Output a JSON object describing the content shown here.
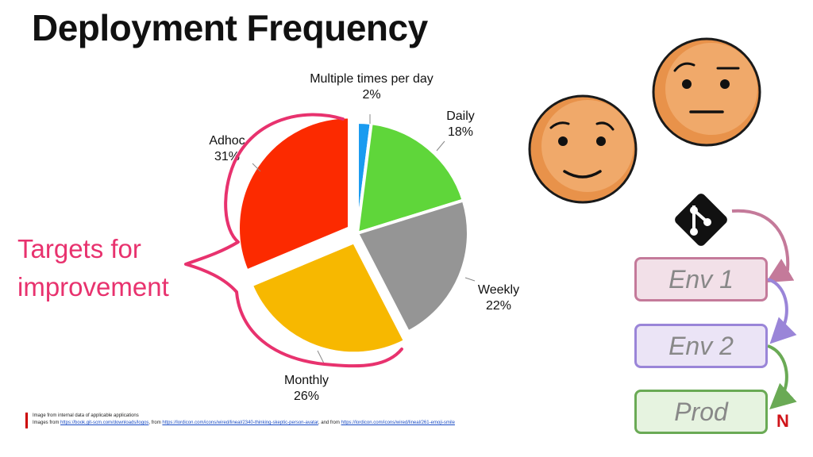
{
  "title": "Deployment Frequency",
  "callout": {
    "text": "Targets for\nimprovement",
    "color": "#e8326e"
  },
  "chart_data": {
    "type": "pie",
    "title": "",
    "slices": [
      {
        "label": "Multiple times per day",
        "value": 2,
        "value_label": "2%",
        "color": "#1a9bf0"
      },
      {
        "label": "Daily",
        "value": 18,
        "value_label": "18%",
        "color": "#5fd63a"
      },
      {
        "label": "Weekly",
        "value": 22,
        "value_label": "22%",
        "color": "#959595"
      },
      {
        "label": "Monthly",
        "value": 26,
        "value_label": "26%",
        "color": "#f7b800",
        "exploded": true
      },
      {
        "label": "Adhoc",
        "value": 31,
        "value_label": "31%",
        "color": "#fc2a00",
        "exploded": true
      }
    ],
    "start_angle_deg": 0,
    "direction": "clockwise",
    "legend": "none"
  },
  "footer": {
    "line1": "Image from internal data of applicable applications",
    "line2_prefix": "Images from ",
    "link1": "https://book.git-scm.com/downloads/logos",
    "sep1": ", from ",
    "link2": "https://lordicon.com/icons/wired/lineal/2340-thinking-skeptic-person-avatar",
    "sep2": ", and from ",
    "link3": "https://lordicon.com/icons/wired/lineal/261-emoji-smile"
  },
  "pipeline": {
    "icon": "git-icon",
    "stages": [
      {
        "label": "Env 1",
        "fill": "#f2e0e8",
        "border": "#c47a9a"
      },
      {
        "label": "Env 2",
        "fill": "#ebe4f6",
        "border": "#9a85d8"
      },
      {
        "label": "Prod",
        "fill": "#e6f3e0",
        "border": "#6aaa55"
      }
    ],
    "arrow_colors": [
      "#c47a9a",
      "#9a85d8",
      "#6aaa55"
    ]
  },
  "faces": [
    {
      "icon": "smiling-face-icon"
    },
    {
      "icon": "skeptical-face-icon"
    }
  ],
  "brand_icon": "netflix-logo-icon",
  "brand_text": "N"
}
